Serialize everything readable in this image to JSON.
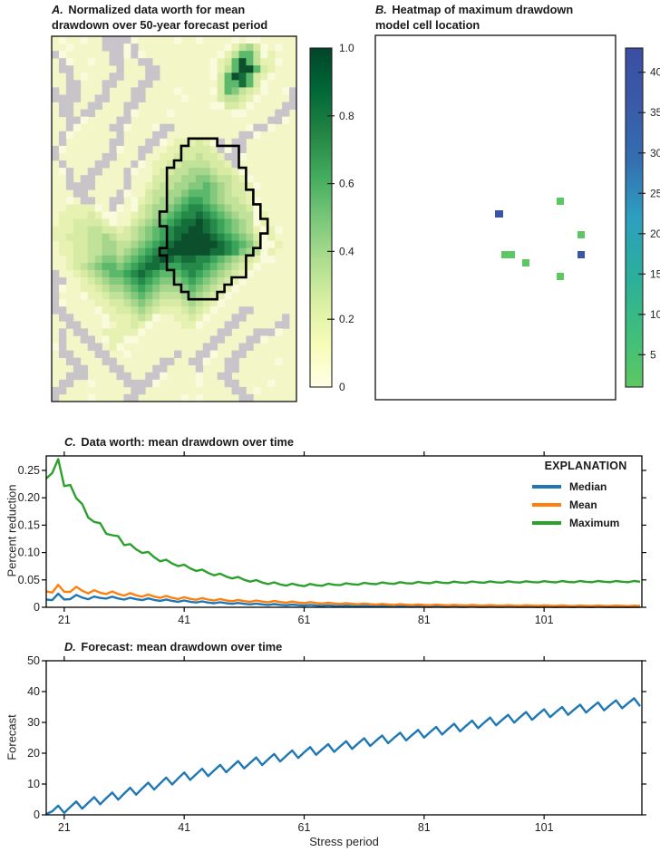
{
  "figure": {
    "background": "#ffffff",
    "text_color": "#231f20"
  },
  "panel_a": {
    "letter": "A.",
    "title_line1": "Normalized data worth for mean",
    "title_line2": "drawdown over 50-year forecast period"
  },
  "panel_b": {
    "letter": "B.",
    "title_line1": "Heatmap of maximum drawdown",
    "title_line2": "model cell location"
  },
  "panel_c": {
    "letter": "C.",
    "title": "Data worth: mean drawdown over time",
    "ylabel": "Percent reduction",
    "legend_title": "EXPLANATION"
  },
  "panel_d": {
    "letter": "D.",
    "title": "Forecast: mean drawdown over time",
    "ylabel": "Forecast",
    "xlabel": "Stress period"
  },
  "chart_data": [
    {
      "id": "A",
      "type": "heatmap",
      "title": "A. Normalized data worth for mean drawdown over 50-year forecast period",
      "colorbar": {
        "range": [
          0,
          1
        ],
        "tick_values": [
          0,
          0.2,
          0.4,
          0.6,
          0.8,
          1.0
        ],
        "tick_labels": [
          "0",
          "0.2",
          "0.4",
          "0.6",
          "0.8",
          "1.0"
        ],
        "colormap_stops": [
          "#ffffe5",
          "#f7fcb9",
          "#d9f0a3",
          "#addd8e",
          "#78c679",
          "#41ab5d",
          "#238443",
          "#006837",
          "#004529"
        ]
      },
      "palette": {
        ".": "#f3f6c6",
        ",": "#f9fbdc",
        ";": "#ecf2b6",
        "g": "#c7c5ca",
        "1": "#e7f1b2",
        "2": "#d8eba4",
        "3": "#c2e29a",
        "4": "#a5d68c",
        "5": "#83c87d",
        "6": "#5cb86a",
        "7": "#3aa45a",
        "8": "#25894a",
        "9": "#156e3a",
        "X": "#0b4f2c"
      },
      "grid_rows": [
        ".,..,..gggg,.....,..,....,.,,.....",
        "..,....ggg,g............,1342,.,..",
        "g,......gg,g,..........,13663,1...",
        ".g,..,..gg..gg........,126X6311,..",
        ".gg......g...gg.......,136XX621...",
        "..g.,...gg...gg.......,26X9621,...",
        "..gg...gg...gg.........266962,....",
        "g.gg...g...gg....,....,265321,..,g",
        "gggg..gg...gg.....,....23321,....g",
        ".gg..gg...gg..........,,221,....gg",
        ".gg.gg....g,....,........,,....gg.",
        "..gg,....gg...................gg,.",
        "..g,....gg,...,gg..........,gg,...",
        ".g,......g....gg..........gg,.....",
        ".g......gg...gg,.11121,g.gg.......",
        "g,......g,..gg..1122221g,gg.......",
        "g......gg...g..112223221gg,.......",
        ".g....gg...g,.11223333221g........",
        ".,g..gg...g,..122334443221,.......",
        "..g.gg....g...2233445543321,......",
        "..gggg....g..123344556543221,.....",
        "...gg....g,..2334456665432210.....",
        "..,.gg..gg.,1234456776543321,.....",
        "..1111,.g,.,2344567887654332,.....",
        ".111121,,..12345678898765433,1....",
        ".1122221,..234567899X9876543,1....",
        "1112233221234567899XX98765431,1,..",
        "112223343223456789XXXX9876542,1...",
        ".1122334433456789XXXXXX987653,,1..",
        ".112233443456789XXXXXX9987543,1...",
        "..1223455456789X9899887654321,,...",
        "..12345665678998778887654321,.....",
        "g..123456678987666787654321,......",
        "gg..1234556787655567654321,.......",
        "g,..112344567654445654321,........",
        "g...,1123345654333454321,.........",
        "g,....11223454322234321,..........",
        "gg....,112234321112321,...gg......",
        ".gg....,111232,..1121,...gg.....g.",
        "..gg...,.1121,....11,...gg.....gg.",
        ".g.gg..11111,..........gg...ggg,..",
        ".g..gg.,11,,..........gg...gg,....",
        ",g...gg.1,...........gg...gg......",
        ".gg...gg..,......g..gg,..gg.......",
        "..gg...gg......gg..gg,..gg.....,..",
        "...gg...gg....gg....g...gg........",
        "..ggg....gg..gg,....,..gg.........",
        ".gg..,....gggg,.....,...gg....,...",
        "gg.........gg............gg.,.....",
        "g....,....gg......,.,.....gg......"
      ],
      "outline_polygon": [
        [
          148,
          111
        ],
        [
          175,
          111
        ],
        [
          186,
          117
        ],
        [
          196,
          123
        ],
        [
          203,
          137
        ],
        [
          208,
          148
        ],
        [
          213,
          160
        ],
        [
          216,
          173
        ],
        [
          222,
          185
        ],
        [
          228,
          198
        ],
        [
          235,
          208
        ],
        [
          240,
          217
        ],
        [
          234,
          226
        ],
        [
          228,
          233
        ],
        [
          225,
          245
        ],
        [
          216,
          262
        ],
        [
          207,
          268
        ],
        [
          201,
          273
        ],
        [
          190,
          282
        ],
        [
          179,
          288
        ],
        [
          163,
          288
        ],
        [
          151,
          285
        ],
        [
          140,
          273
        ],
        [
          135,
          260
        ],
        [
          128,
          245
        ],
        [
          123,
          237
        ],
        [
          131,
          223
        ],
        [
          126,
          208
        ],
        [
          123,
          193
        ],
        [
          128,
          177
        ],
        [
          125,
          160
        ],
        [
          130,
          145
        ],
        [
          135,
          133
        ],
        [
          140,
          123
        ],
        [
          148,
          111
        ]
      ]
    },
    {
      "id": "B",
      "type": "heatmap",
      "title": "B. Heatmap of maximum drawdown model cell location",
      "colorbar": {
        "range": [
          1,
          43
        ],
        "tick_values": [
          5,
          10,
          15,
          20,
          25,
          30,
          35,
          40
        ],
        "tick_labels": [
          "5",
          "10",
          "15",
          "20",
          "25",
          "30",
          "35",
          "40"
        ],
        "colormap_stops": [
          "#5dc863",
          "#3dbd7d",
          "#2bae9c",
          "#2d9fc0",
          "#336fb1",
          "#3a5aa8",
          "#3b4fa2"
        ]
      },
      "cells": [
        {
          "x": 200,
          "y": 179,
          "w": 8,
          "h": 8,
          "color": "#5dc863",
          "value": 4
        },
        {
          "x": 132,
          "y": 193,
          "w": 9,
          "h": 8,
          "color": "#3a55a7",
          "value": 40
        },
        {
          "x": 223,
          "y": 216,
          "w": 8,
          "h": 8,
          "color": "#5dc863",
          "value": 4
        },
        {
          "x": 139,
          "y": 238,
          "w": 15,
          "h": 8,
          "color": "#5dc863",
          "value": 5
        },
        {
          "x": 162,
          "y": 247,
          "w": 8,
          "h": 8,
          "color": "#5dc863",
          "value": 4
        },
        {
          "x": 223,
          "y": 238,
          "w": 8,
          "h": 8,
          "color": "#3a55a7",
          "value": 38
        },
        {
          "x": 200,
          "y": 262,
          "w": 8,
          "h": 8,
          "color": "#5dc863",
          "value": 3
        }
      ]
    },
    {
      "id": "C",
      "type": "line",
      "title": "C. Data worth: mean drawdown over time",
      "xlabel": "",
      "ylabel": "Percent reduction",
      "xlim": [
        18,
        117.3
      ],
      "ylim": [
        0,
        0.2765
      ],
      "x_tick_values": [
        21,
        41,
        61,
        81,
        101
      ],
      "x_tick_labels": [
        "21",
        "41",
        "61",
        "81",
        "101"
      ],
      "y_tick_values": [
        0,
        0.05,
        0.1,
        0.15,
        0.2,
        0.25
      ],
      "y_tick_labels": [
        "0",
        "0.05",
        "0.10",
        "0.15",
        "0.20",
        "0.25"
      ],
      "legend_title": "EXPLANATION",
      "series": [
        {
          "name": "Median",
          "color": "#1f77b4",
          "anchors": [
            [
              18,
              0.015
            ],
            [
              19,
              0.016
            ],
            [
              20,
              0.022
            ],
            [
              21,
              0.015
            ],
            [
              23,
              0.02
            ],
            [
              25,
              0.017
            ],
            [
              28,
              0.018
            ],
            [
              31,
              0.016
            ],
            [
              35,
              0.0145
            ],
            [
              40,
              0.0115
            ],
            [
              45,
              0.009
            ],
            [
              50,
              0.007
            ],
            [
              55,
              0.0052
            ],
            [
              60,
              0.004
            ],
            [
              65,
              0.003
            ],
            [
              70,
              0.0022
            ],
            [
              80,
              0.0013
            ],
            [
              90,
              0.0009
            ],
            [
              100,
              0.0007
            ],
            [
              117,
              0.0006
            ]
          ],
          "osc": {
            "pattern": [
              -0.3,
              -1,
              1
            ],
            "a0": 0.0028,
            "tau": 26,
            "base": 0.0002
          },
          "ymin": 0.0004
        },
        {
          "name": "Mean",
          "color": "#ff7f0e",
          "anchors": [
            [
              18,
              0.03
            ],
            [
              19,
              0.031
            ],
            [
              20,
              0.037
            ],
            [
              21,
              0.0295
            ],
            [
              23,
              0.034
            ],
            [
              25,
              0.0285
            ],
            [
              28,
              0.027
            ],
            [
              31,
              0.024
            ],
            [
              35,
              0.021
            ],
            [
              40,
              0.017
            ],
            [
              45,
              0.0145
            ],
            [
              50,
              0.012
            ],
            [
              55,
              0.0105
            ],
            [
              60,
              0.009
            ],
            [
              65,
              0.0075
            ],
            [
              70,
              0.0062
            ],
            [
              75,
              0.0052
            ],
            [
              80,
              0.0045
            ],
            [
              90,
              0.0035
            ],
            [
              100,
              0.003
            ],
            [
              117,
              0.0025
            ]
          ],
          "osc": {
            "pattern": [
              -0.3,
              -1,
              1
            ],
            "a0": 0.0038,
            "tau": 26,
            "base": 0.0003
          },
          "ymin": 0.001
        },
        {
          "name": "Maximum",
          "color": "#2ca02c",
          "anchors": [
            [
              18,
              0.237
            ],
            [
              19,
              0.25
            ],
            [
              20,
              0.266
            ],
            [
              21,
              0.223
            ],
            [
              22,
              0.228
            ],
            [
              23,
              0.195
            ],
            [
              24,
              0.19
            ],
            [
              25,
              0.168
            ],
            [
              26,
              0.152
            ],
            [
              27,
              0.155
            ],
            [
              28,
              0.138
            ],
            [
              29,
              0.128
            ],
            [
              30,
              0.131
            ],
            [
              31,
              0.117
            ],
            [
              33,
              0.107
            ],
            [
              35,
              0.098
            ],
            [
              37,
              0.087
            ],
            [
              40,
              0.078
            ],
            [
              43,
              0.069
            ],
            [
              46,
              0.061
            ],
            [
              49,
              0.055
            ],
            [
              52,
              0.049
            ],
            [
              55,
              0.0445
            ],
            [
              58,
              0.0415
            ],
            [
              61,
              0.0405
            ],
            [
              64,
              0.041
            ],
            [
              67,
              0.042
            ],
            [
              72,
              0.0435
            ],
            [
              80,
              0.045
            ],
            [
              90,
              0.046
            ],
            [
              100,
              0.0465
            ],
            [
              110,
              0.047
            ],
            [
              117,
              0.047
            ]
          ],
          "osc": {
            "pattern": [
              -0.35,
              -1,
              1
            ],
            "a0": 0.004,
            "tau": 30,
            "base": 0.0009
          },
          "ymin": 0.0
        }
      ]
    },
    {
      "id": "D",
      "type": "line",
      "title": "D. Forecast: mean drawdown over time",
      "xlabel": "Stress period",
      "ylabel": "Forecast",
      "xlim": [
        18,
        117.3
      ],
      "ylim": [
        0,
        50
      ],
      "x_tick_values": [
        21,
        41,
        61,
        81,
        101
      ],
      "x_tick_labels": [
        "21",
        "41",
        "61",
        "81",
        "101"
      ],
      "y_tick_values": [
        0,
        10,
        20,
        30,
        40,
        50
      ],
      "y_tick_labels": [
        "0",
        "10",
        "20",
        "30",
        "40",
        "50"
      ],
      "series": [
        {
          "name": "Forecast",
          "color": "#1f77b4",
          "anchors": [
            [
              18,
              0.6
            ],
            [
              25,
              3.8
            ],
            [
              31,
              6.8
            ],
            [
              41,
              12.3
            ],
            [
              51,
              16.4
            ],
            [
              61,
              20.2
            ],
            [
              71,
              23.4
            ],
            [
              81,
              26.4
            ],
            [
              91,
              29.8
            ],
            [
              101,
              32.8
            ],
            [
              109,
              34.8
            ],
            [
              117,
              36.6
            ]
          ],
          "osc": {
            "pattern": [
              -1.35,
              0.1,
              1.45
            ],
            "a0": 1,
            "tau": 1000000,
            "base": 0
          },
          "ymin": 0.25
        }
      ]
    }
  ]
}
